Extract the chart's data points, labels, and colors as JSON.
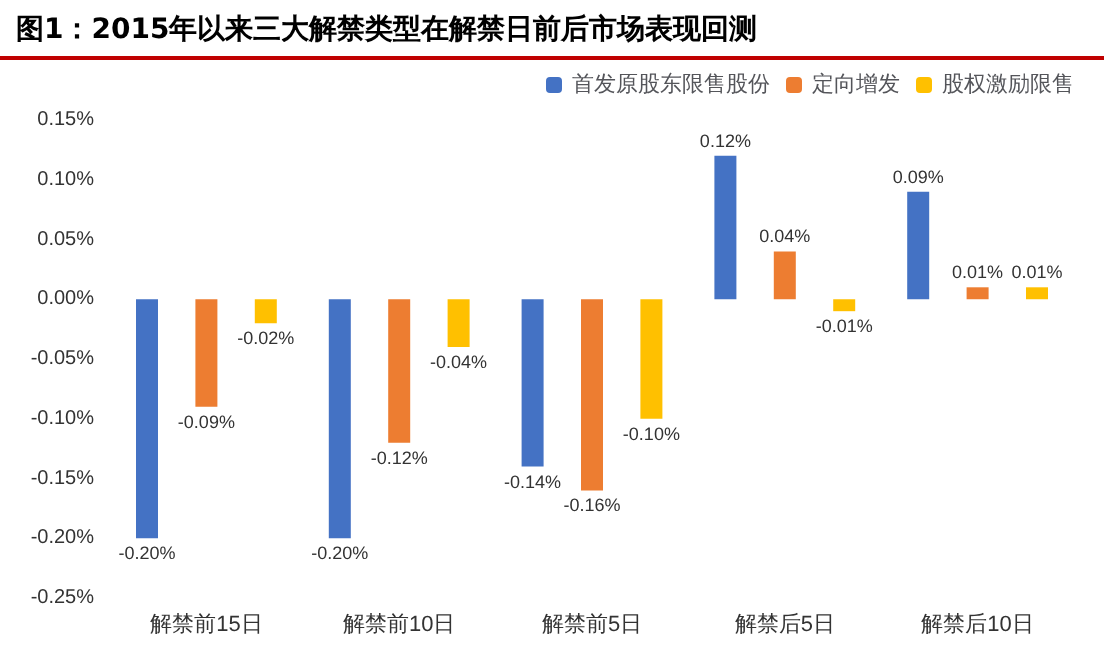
{
  "chart_data": {
    "type": "bar",
    "title": "图1：2015年以来三大解禁类型在解禁日前后市场表现回测",
    "categories": [
      "解禁前15日",
      "解禁前10日",
      "解禁前5日",
      "解禁后5日",
      "解禁后10日"
    ],
    "series": [
      {
        "name": "首发原股东限售股份",
        "color": "#4472c4",
        "values": [
          -0.2,
          -0.2,
          -0.14,
          0.12,
          0.09
        ],
        "value_labels": [
          "-0.20%",
          "-0.20%",
          "-0.14%",
          "0.12%",
          "0.09%"
        ]
      },
      {
        "name": "定向增发",
        "color": "#ed7d31",
        "values": [
          -0.09,
          -0.12,
          -0.16,
          0.04,
          0.01
        ],
        "value_labels": [
          "-0.09%",
          "-0.12%",
          "-0.16%",
          "0.04%",
          "0.01%"
        ]
      },
      {
        "name": "股权激励限售",
        "color": "#ffc000",
        "values": [
          -0.02,
          -0.04,
          -0.1,
          -0.01,
          0.01
        ],
        "value_labels": [
          "-0.02%",
          "-0.04%",
          "-0.10%",
          "-0.01%",
          "0.01%"
        ]
      }
    ],
    "ylim": [
      -0.25,
      0.15
    ],
    "yticks": [
      {
        "value": -0.25,
        "label": "-0.25%"
      },
      {
        "value": -0.2,
        "label": "-0.20%"
      },
      {
        "value": -0.15,
        "label": "-0.15%"
      },
      {
        "value": -0.1,
        "label": "-0.10%"
      },
      {
        "value": -0.05,
        "label": "-0.05%"
      },
      {
        "value": 0,
        "label": "0.00%"
      },
      {
        "value": 0.05,
        "label": "0.05%"
      },
      {
        "value": 0.1,
        "label": "0.10%"
      },
      {
        "value": 0.15,
        "label": "0.15%"
      }
    ],
    "grid": false,
    "legend": "top right"
  }
}
